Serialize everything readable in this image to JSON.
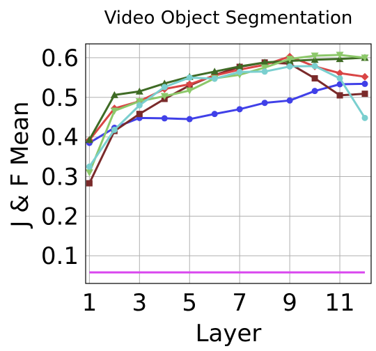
{
  "chart_data": {
    "type": "line",
    "title": "Video Object Segmentation",
    "xlabel": "Layer",
    "ylabel": "J & F Mean",
    "xlim": [
      0.85,
      12.25
    ],
    "ylim": [
      0.03,
      0.635
    ],
    "xticks": [
      1,
      3,
      5,
      7,
      9,
      11
    ],
    "yticks": [
      0.1,
      0.2,
      0.3,
      0.4,
      0.5,
      0.6
    ],
    "ytick_labels": [
      "0.1",
      "0.2",
      "0.3",
      "0.4",
      "0.5",
      "0.6"
    ],
    "grid": true,
    "x": [
      1,
      2,
      3,
      4,
      5,
      6,
      7,
      8,
      9,
      10,
      11,
      12
    ],
    "series": [
      {
        "color": "#4040e8",
        "marker": "circle",
        "values": [
          0.385,
          0.423,
          0.448,
          0.447,
          0.445,
          0.458,
          0.47,
          0.486,
          0.492,
          0.516,
          0.533,
          0.534
        ]
      },
      {
        "color": "#7a2a2a",
        "marker": "square",
        "values": [
          0.283,
          0.415,
          0.458,
          0.496,
          0.53,
          0.556,
          0.577,
          0.588,
          0.585,
          0.548,
          0.505,
          0.509
        ]
      },
      {
        "color": "#d94545",
        "marker": "diamond",
        "values": [
          0.392,
          0.472,
          0.49,
          0.521,
          0.533,
          0.555,
          0.57,
          0.582,
          0.603,
          0.578,
          0.561,
          0.552
        ]
      },
      {
        "color": "#3f6b25",
        "marker": "triangle-up",
        "values": [
          0.393,
          0.506,
          0.515,
          0.535,
          0.552,
          0.565,
          0.578,
          0.588,
          0.592,
          0.595,
          0.597,
          0.6
        ]
      },
      {
        "color": "#8cc86a",
        "marker": "triangle-down",
        "values": [
          0.31,
          0.466,
          0.49,
          0.503,
          0.517,
          0.548,
          0.557,
          0.575,
          0.597,
          0.605,
          0.607,
          0.6
        ]
      },
      {
        "color": "#7acfcf",
        "marker": "circle",
        "values": [
          0.325,
          0.418,
          0.48,
          0.526,
          0.55,
          0.547,
          0.564,
          0.565,
          0.578,
          0.579,
          0.548,
          0.448
        ]
      },
      {
        "color": "#d946ef",
        "marker": "none",
        "values": [
          0.058,
          0.058,
          0.058,
          0.058,
          0.058,
          0.058,
          0.058,
          0.058,
          0.058,
          0.058,
          0.058,
          0.058
        ]
      }
    ]
  }
}
